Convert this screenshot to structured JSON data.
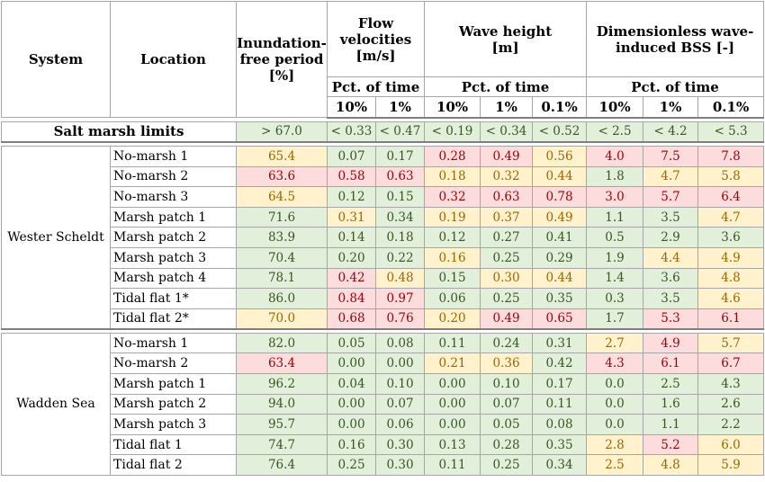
{
  "header": {
    "system": "System",
    "location": "Location",
    "inundation": [
      "Inundation-",
      "free period",
      "[%]"
    ],
    "flow": [
      "Flow",
      "velocities",
      "[m/s]"
    ],
    "wave": [
      "Wave height",
      "[m]"
    ],
    "bss": [
      "Dimensionless wave-",
      "induced BSS  [-]"
    ],
    "pct_of_time": "Pct. of time",
    "pct": [
      "10%",
      "1%",
      "10%",
      "1%",
      "0.1%",
      "10%",
      "1%",
      "0.1%"
    ]
  },
  "limits": {
    "label": "Salt marsh limits",
    "values": [
      "> 67.0",
      "< 0.33",
      "< 0.47",
      "< 0.19",
      "< 0.34",
      "< 0.52",
      "< 2.5",
      "< 4.2",
      "< 5.3"
    ]
  },
  "colors": {
    "green_fill": "#e2efda",
    "green_text": "#375623",
    "yellow_fill": "#fff2cc",
    "yellow_text": "#9c6500",
    "red_fill": "#fcdcdc",
    "red_text": "#9c0006"
  },
  "groups": [
    {
      "system": "Wester Scheldt",
      "rows": [
        {
          "location": "No-marsh 1",
          "values": [
            "65.4",
            "0.07",
            "0.17",
            "0.28",
            "0.49",
            "0.56",
            "4.0",
            "7.5",
            "7.8"
          ],
          "colors": [
            "y",
            "g",
            "g",
            "r",
            "r",
            "y",
            "r",
            "r",
            "r"
          ]
        },
        {
          "location": "No-marsh 2",
          "values": [
            "63.6",
            "0.58",
            "0.63",
            "0.18",
            "0.32",
            "0.44",
            "1.8",
            "4.7",
            "5.8"
          ],
          "colors": [
            "r",
            "r",
            "r",
            "y",
            "y",
            "y",
            "g",
            "y",
            "y"
          ]
        },
        {
          "location": "No-marsh 3",
          "values": [
            "64.5",
            "0.12",
            "0.15",
            "0.32",
            "0.63",
            "0.78",
            "3.0",
            "5.7",
            "6.4"
          ],
          "colors": [
            "y",
            "g",
            "g",
            "r",
            "r",
            "r",
            "r",
            "r",
            "r"
          ]
        },
        {
          "location": "Marsh patch 1",
          "values": [
            "71.6",
            "0.31",
            "0.34",
            "0.19",
            "0.37",
            "0.49",
            "1.1",
            "3.5",
            "4.7"
          ],
          "colors": [
            "g",
            "y",
            "g",
            "y",
            "y",
            "y",
            "g",
            "g",
            "y"
          ]
        },
        {
          "location": "Marsh patch 2",
          "values": [
            "83.9",
            "0.14",
            "0.18",
            "0.12",
            "0.27",
            "0.41",
            "0.5",
            "2.9",
            "3.6"
          ],
          "colors": [
            "g",
            "g",
            "g",
            "g",
            "g",
            "g",
            "g",
            "g",
            "g"
          ]
        },
        {
          "location": "Marsh patch 3",
          "values": [
            "70.4",
            "0.20",
            "0.22",
            "0.16",
            "0.25",
            "0.29",
            "1.9",
            "4.4",
            "4.9"
          ],
          "colors": [
            "g",
            "g",
            "g",
            "y",
            "g",
            "g",
            "g",
            "y",
            "y"
          ]
        },
        {
          "location": "Marsh patch 4",
          "values": [
            "78.1",
            "0.42",
            "0.48",
            "0.15",
            "0.30",
            "0.44",
            "1.4",
            "3.6",
            "4.8"
          ],
          "colors": [
            "g",
            "r",
            "y",
            "g",
            "y",
            "y",
            "g",
            "g",
            "y"
          ]
        },
        {
          "location": "Tidal flat 1*",
          "values": [
            "86.0",
            "0.84",
            "0.97",
            "0.06",
            "0.25",
            "0.35",
            "0.3",
            "3.5",
            "4.6"
          ],
          "colors": [
            "g",
            "r",
            "r",
            "g",
            "g",
            "g",
            "g",
            "g",
            "y"
          ]
        },
        {
          "location": "Tidal flat 2*",
          "values": [
            "70.0",
            "0.68",
            "0.76",
            "0.20",
            "0.49",
            "0.65",
            "1.7",
            "5.3",
            "6.1"
          ],
          "colors": [
            "y",
            "r",
            "r",
            "y",
            "r",
            "r",
            "g",
            "r",
            "r"
          ]
        }
      ]
    },
    {
      "system": "Wadden Sea",
      "rows": [
        {
          "location": "No-marsh 1",
          "values": [
            "82.0",
            "0.05",
            "0.08",
            "0.11",
            "0.24",
            "0.31",
            "2.7",
            "4.9",
            "5.7"
          ],
          "colors": [
            "g",
            "g",
            "g",
            "g",
            "g",
            "g",
            "y",
            "r",
            "y"
          ]
        },
        {
          "location": "No-marsh 2",
          "values": [
            "63.4",
            "0.00",
            "0.00",
            "0.21",
            "0.36",
            "0.42",
            "4.3",
            "6.1",
            "6.7"
          ],
          "colors": [
            "r",
            "g",
            "g",
            "y",
            "y",
            "g",
            "r",
            "r",
            "r"
          ]
        },
        {
          "location": "Marsh patch 1",
          "values": [
            "96.2",
            "0.04",
            "0.10",
            "0.00",
            "0.10",
            "0.17",
            "0.0",
            "2.5",
            "4.3"
          ],
          "colors": [
            "g",
            "g",
            "g",
            "g",
            "g",
            "g",
            "g",
            "g",
            "g"
          ]
        },
        {
          "location": "Marsh patch 2",
          "values": [
            "94.0",
            "0.00",
            "0.07",
            "0.00",
            "0.07",
            "0.11",
            "0.0",
            "1.6",
            "2.6"
          ],
          "colors": [
            "g",
            "g",
            "g",
            "g",
            "g",
            "g",
            "g",
            "g",
            "g"
          ]
        },
        {
          "location": "Marsh patch 3",
          "values": [
            "95.7",
            "0.00",
            "0.06",
            "0.00",
            "0.05",
            "0.08",
            "0.0",
            "1.1",
            "2.2"
          ],
          "colors": [
            "g",
            "g",
            "g",
            "g",
            "g",
            "g",
            "g",
            "g",
            "g"
          ]
        },
        {
          "location": "Tidal flat 1",
          "values": [
            "74.7",
            "0.16",
            "0.30",
            "0.13",
            "0.28",
            "0.35",
            "2.8",
            "5.2",
            "6.0"
          ],
          "colors": [
            "g",
            "g",
            "g",
            "g",
            "g",
            "g",
            "y",
            "r",
            "y"
          ]
        },
        {
          "location": "Tidal flat 2",
          "values": [
            "76.4",
            "0.25",
            "0.30",
            "0.11",
            "0.25",
            "0.34",
            "2.5",
            "4.8",
            "5.9"
          ],
          "colors": [
            "g",
            "g",
            "g",
            "g",
            "g",
            "g",
            "y",
            "y",
            "y"
          ]
        }
      ]
    }
  ]
}
